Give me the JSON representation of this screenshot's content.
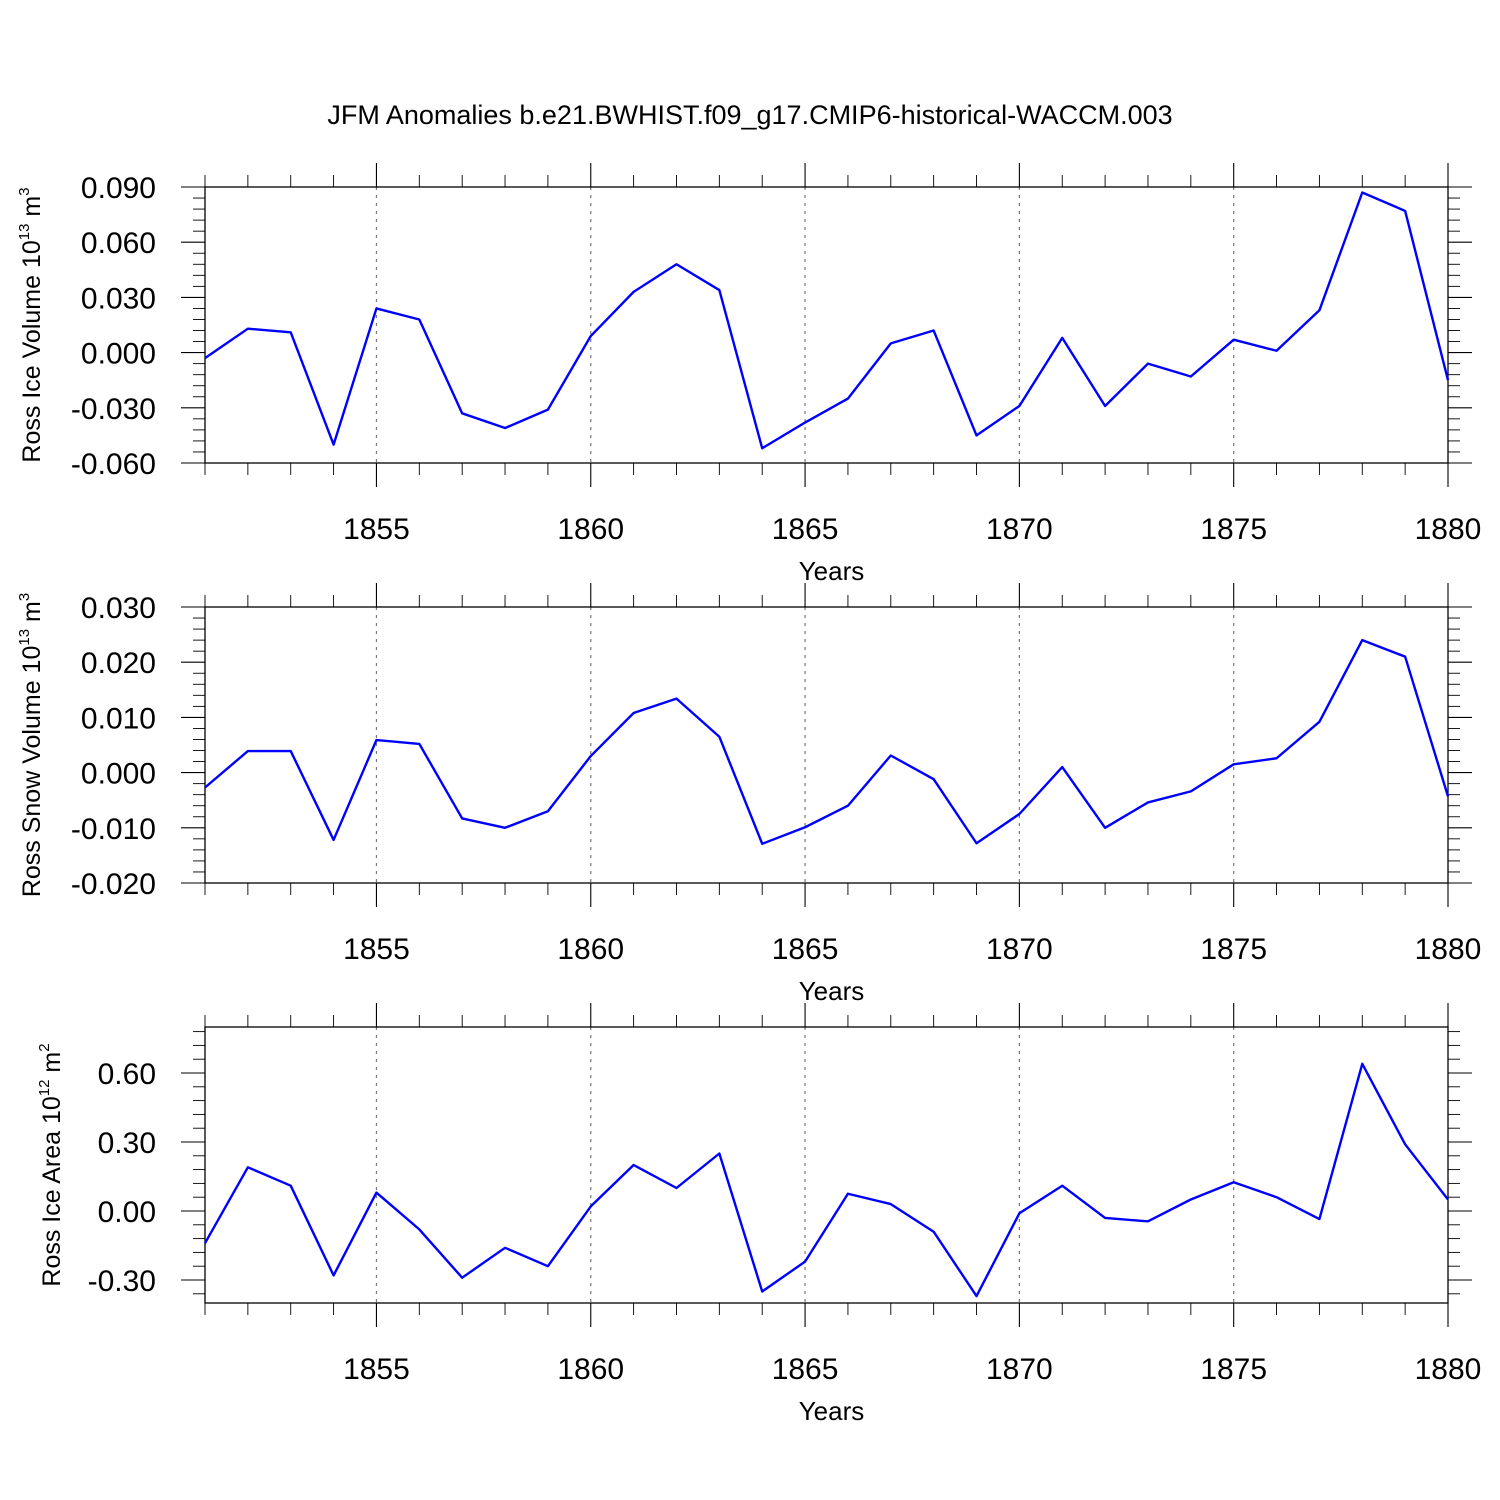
{
  "title": "JFM Anomalies b.e21.BWHIST.f09_g17.CMIP6-historical-WACCM.003",
  "line_color": "#0000ff",
  "chart_data": [
    {
      "type": "line",
      "xlabel": "Years",
      "ylabel": "Ross Ice Volume 10",
      "ylabel_exp": "13",
      "ylabel_unit": " m",
      "ylabel_unit_exp": "3",
      "xlim": [
        1851,
        1880
      ],
      "ylim": [
        -0.06,
        0.09
      ],
      "x_ticks": [
        1855,
        1860,
        1865,
        1870,
        1875,
        1880
      ],
      "x_tick_labels": [
        "1855",
        "1860",
        "1865",
        "1870",
        "1875",
        "1880"
      ],
      "y_ticks": [
        -0.06,
        -0.03,
        0.0,
        0.03,
        0.06,
        0.09
      ],
      "y_tick_labels": [
        "-0.060",
        "-0.030",
        "0.000",
        "0.030",
        "0.060",
        "0.090"
      ],
      "grid": "vertical dashed at major x ticks",
      "x": [
        1851,
        1852,
        1853,
        1854,
        1855,
        1856,
        1857,
        1858,
        1859,
        1860,
        1861,
        1862,
        1863,
        1864,
        1865,
        1866,
        1867,
        1868,
        1869,
        1870,
        1871,
        1872,
        1873,
        1874,
        1875,
        1876,
        1877,
        1878,
        1879,
        1880
      ],
      "values": [
        -0.003,
        0.013,
        0.011,
        -0.05,
        0.024,
        0.018,
        -0.033,
        -0.041,
        -0.031,
        0.009,
        0.033,
        0.048,
        0.034,
        -0.052,
        -0.038,
        -0.025,
        0.005,
        0.012,
        -0.045,
        -0.029,
        0.008,
        -0.029,
        -0.006,
        -0.013,
        0.007,
        0.001,
        0.023,
        0.087,
        0.077,
        -0.015
      ]
    },
    {
      "type": "line",
      "xlabel": "Years",
      "ylabel": "Ross Snow Volume 10",
      "ylabel_exp": "13",
      "ylabel_unit": " m",
      "ylabel_unit_exp": "3",
      "xlim": [
        1851,
        1880
      ],
      "ylim": [
        -0.02,
        0.03
      ],
      "x_ticks": [
        1855,
        1860,
        1865,
        1870,
        1875,
        1880
      ],
      "x_tick_labels": [
        "1855",
        "1860",
        "1865",
        "1870",
        "1875",
        "1880"
      ],
      "y_ticks": [
        -0.02,
        -0.01,
        0.0,
        0.01,
        0.02,
        0.03
      ],
      "y_tick_labels": [
        "-0.020",
        "-0.010",
        "0.000",
        "0.010",
        "0.020",
        "0.030"
      ],
      "grid": "vertical dashed at major x ticks",
      "x": [
        1851,
        1852,
        1853,
        1854,
        1855,
        1856,
        1857,
        1858,
        1859,
        1860,
        1861,
        1862,
        1863,
        1864,
        1865,
        1866,
        1867,
        1868,
        1869,
        1870,
        1871,
        1872,
        1873,
        1874,
        1875,
        1876,
        1877,
        1878,
        1879,
        1880
      ],
      "values": [
        -0.0027,
        0.0039,
        0.0039,
        -0.0122,
        0.0059,
        0.0052,
        -0.0083,
        -0.01,
        -0.007,
        0.003,
        0.0108,
        0.0134,
        0.0065,
        -0.0129,
        -0.0099,
        -0.006,
        0.0031,
        -0.0012,
        -0.0128,
        -0.0075,
        0.001,
        -0.01,
        -0.0054,
        -0.0034,
        0.0015,
        0.0026,
        0.0092,
        0.024,
        0.021,
        -0.0043
      ]
    },
    {
      "type": "line",
      "xlabel": "Years",
      "ylabel": "Ross Ice Area 10",
      "ylabel_exp": "12",
      "ylabel_unit": " m",
      "ylabel_unit_exp": "2",
      "xlim": [
        1851,
        1880
      ],
      "ylim": [
        -0.4,
        0.8
      ],
      "x_ticks": [
        1855,
        1860,
        1865,
        1870,
        1875,
        1880
      ],
      "x_tick_labels": [
        "1855",
        "1860",
        "1865",
        "1870",
        "1875",
        "1880"
      ],
      "y_ticks": [
        -0.3,
        0.0,
        0.3,
        0.6
      ],
      "y_tick_labels": [
        "-0.30",
        "0.00",
        "0.30",
        "0.60"
      ],
      "grid": "vertical dashed at major x ticks",
      "x": [
        1851,
        1852,
        1853,
        1854,
        1855,
        1856,
        1857,
        1858,
        1859,
        1860,
        1861,
        1862,
        1863,
        1864,
        1865,
        1866,
        1867,
        1868,
        1869,
        1870,
        1871,
        1872,
        1873,
        1874,
        1875,
        1876,
        1877,
        1878,
        1879,
        1880
      ],
      "values": [
        -0.14,
        0.19,
        0.11,
        -0.28,
        0.08,
        -0.08,
        -0.29,
        -0.16,
        -0.24,
        0.02,
        0.2,
        0.1,
        0.25,
        -0.35,
        -0.22,
        0.075,
        0.03,
        -0.09,
        -0.37,
        -0.01,
        0.11,
        -0.03,
        -0.045,
        0.05,
        0.125,
        0.06,
        -0.035,
        0.64,
        0.29,
        0.05
      ]
    }
  ]
}
